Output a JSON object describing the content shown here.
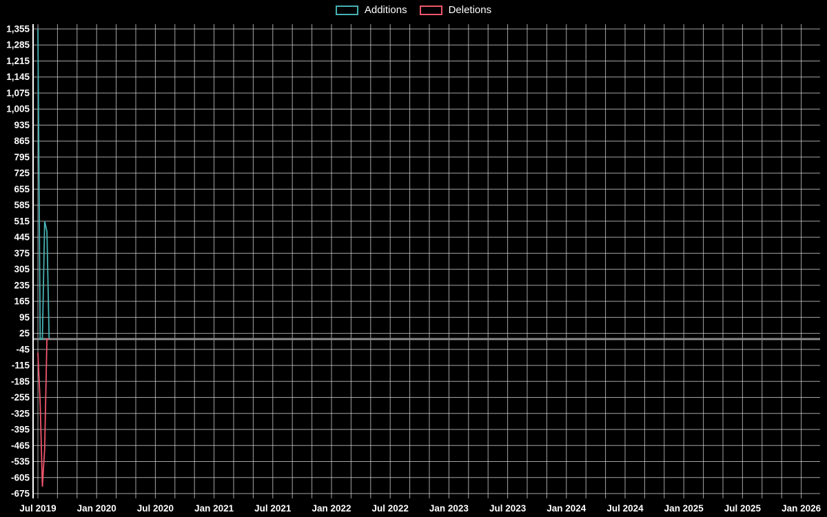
{
  "page": {
    "background": "#000000",
    "text_color": "#ffffff"
  },
  "legend": {
    "items": [
      {
        "label": "Additions",
        "color": "#46b1b3"
      },
      {
        "label": "Deletions",
        "color": "#f0566c"
      }
    ]
  },
  "chart_data": {
    "type": "line",
    "title": "",
    "xlabel": "",
    "ylabel": "",
    "grid": true,
    "legend_position": "top-center",
    "x_axis": {
      "tick_labels": [
        "Jul 2019",
        "Jan 2020",
        "Jul 2020",
        "Jan 2021",
        "Jul 2021",
        "Jan 2022",
        "Jul 2022",
        "Jan 2023",
        "Jul 2023",
        "Jan 2024",
        "Jul 2024",
        "Jan 2025",
        "Jul 2025",
        "Jan 2026"
      ],
      "tick_interval_months": 6,
      "gridline_interval_months": 2
    },
    "y_axis": {
      "min": -675,
      "max": 1355,
      "tick_step": 70,
      "tick_labels": [
        "1,355",
        "1,285",
        "1,215",
        "1,145",
        "1,075",
        "1,005",
        "935",
        "865",
        "795",
        "725",
        "655",
        "585",
        "515",
        "445",
        "375",
        "305",
        "235",
        "165",
        "95",
        "25",
        "-45",
        "-115",
        "-185",
        "-255",
        "-325",
        "-395",
        "-465",
        "-535",
        "-605",
        "-675"
      ]
    },
    "zero_line": {
      "show": true,
      "color": "#8a8a8a",
      "width": 3
    },
    "x_week_index": [
      0,
      1,
      2,
      3,
      4,
      5
    ],
    "series": [
      {
        "name": "Additions",
        "color": "#46b1b3",
        "values": [
          1355,
          0,
          0,
          515,
          470,
          0
        ]
      },
      {
        "name": "Deletions",
        "color": "#f0566c",
        "values": [
          -60,
          -280,
          -645,
          -480,
          0,
          0
        ]
      }
    ],
    "colors": {
      "gridline": "#cfcfcf",
      "axis_line": "#ffffff",
      "tick_text": "#ffffff"
    }
  }
}
